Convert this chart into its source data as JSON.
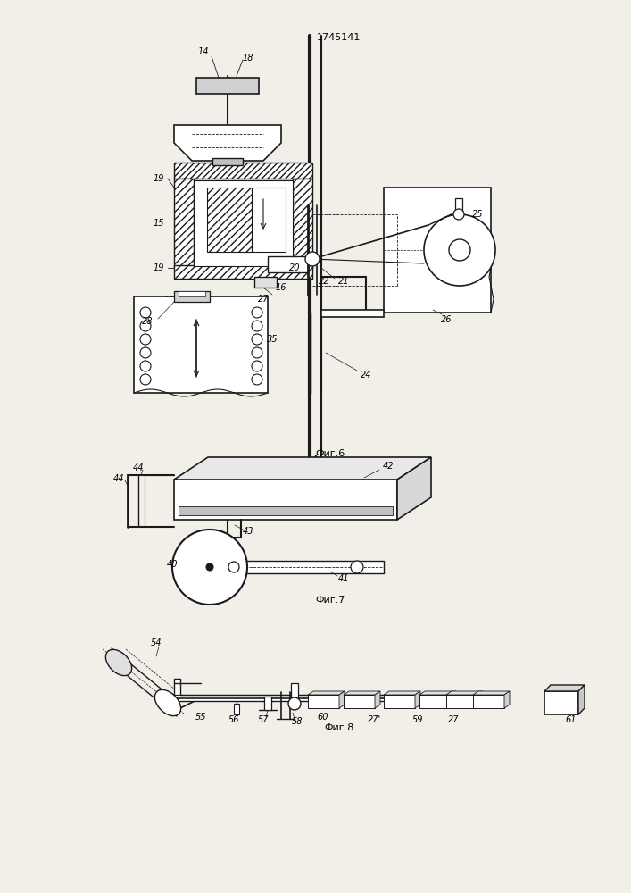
{
  "title": "1745141",
  "bg_color": "#f2efe9",
  "line_color": "#1a1a1a",
  "fig6_label": "Фиг.6",
  "fig7_label": "Фиг.7",
  "fig8_label": "Фиг.8"
}
